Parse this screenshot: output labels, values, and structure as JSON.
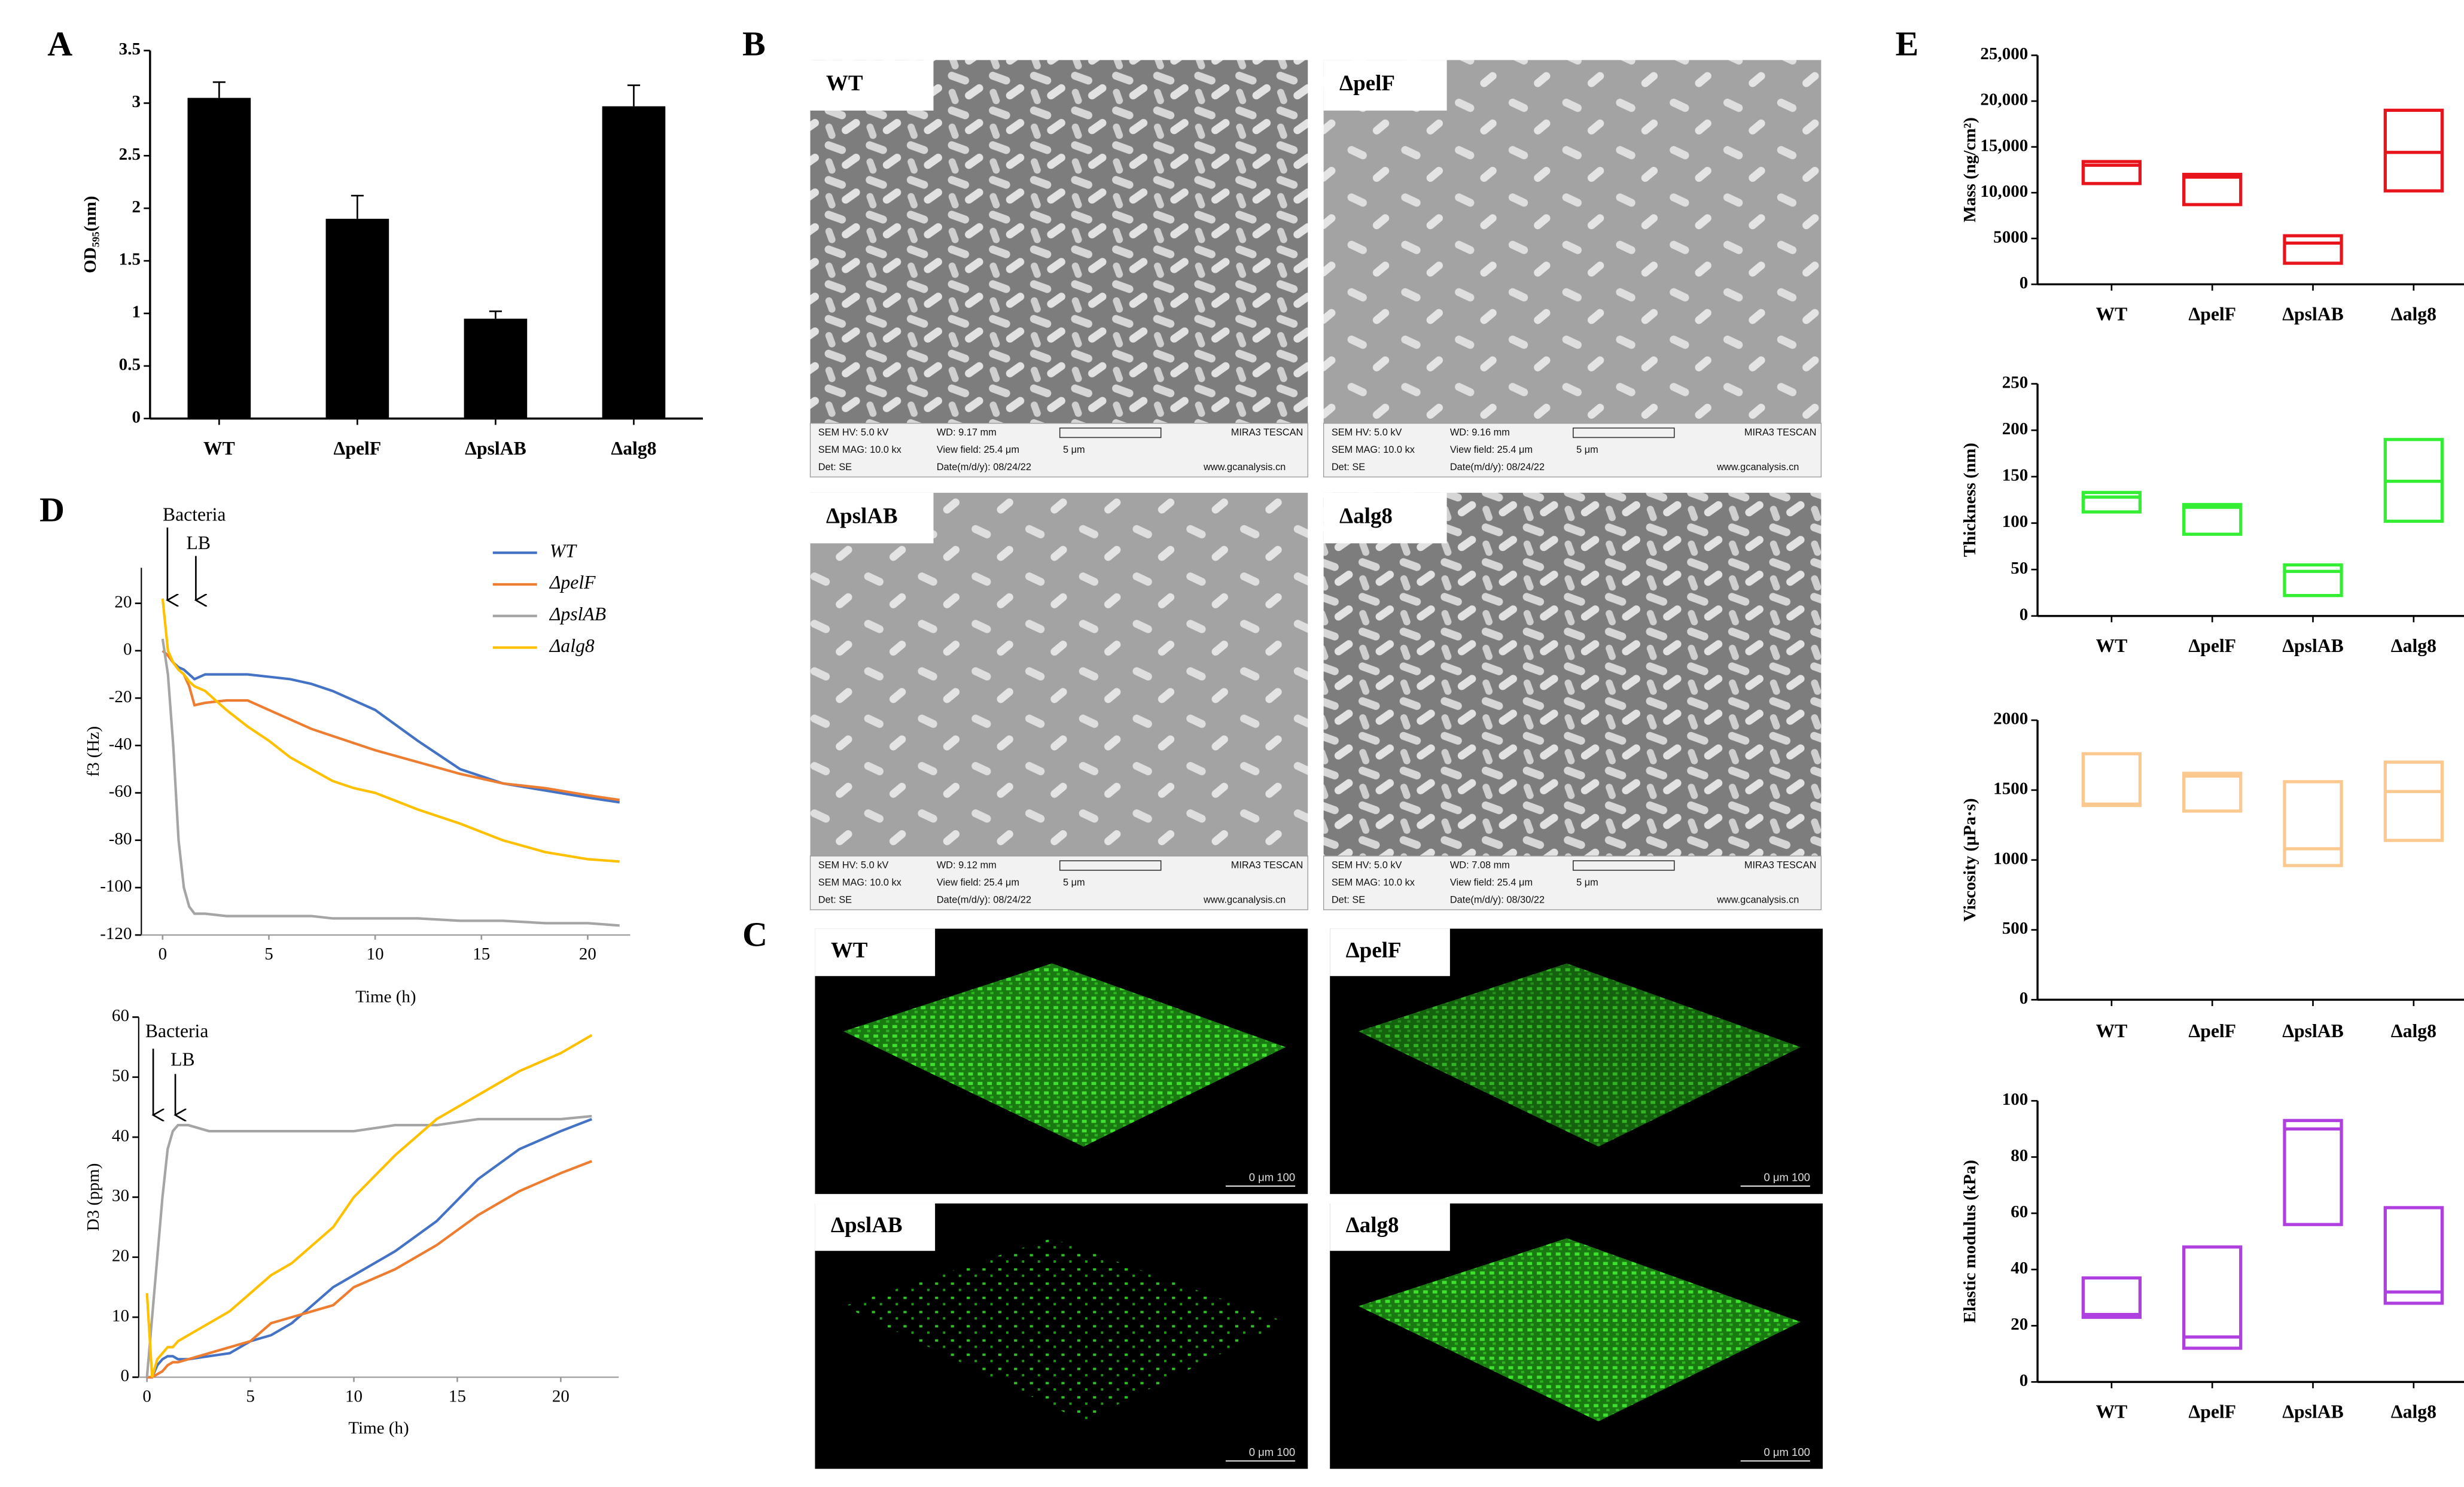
{
  "panel_labels": [
    "A",
    "B",
    "C",
    "D",
    "E"
  ],
  "sem_images": [
    {
      "label": "WT",
      "hv": "SEM HV: 5.0 kV",
      "wd": "WD: 9.17 mm",
      "brand": "MIRA3 TESCAN",
      "mag": "SEM MAG: 10.0 kx",
      "view_field": "View field: 25.4 μm",
      "scale": "5 μm",
      "det": "Det: SE",
      "date": "Date(m/d/y): 08/24/22",
      "website": "www.gcanalysis.cn"
    },
    {
      "label": "ΔpelF",
      "hv": "SEM HV: 5.0 kV",
      "wd": "WD: 9.16 mm",
      "brand": "MIRA3 TESCAN",
      "mag": "SEM MAG: 10.0 kx",
      "view_field": "View field: 25.4 μm",
      "scale": "5 μm",
      "det": "Det: SE",
      "date": "Date(m/d/y): 08/24/22",
      "website": "www.gcanalysis.cn"
    },
    {
      "label": "ΔpslAB",
      "hv": "SEM HV: 5.0 kV",
      "wd": "WD: 9.12 mm",
      "brand": "MIRA3 TESCAN",
      "mag": "SEM MAG: 10.0 kx",
      "view_field": "View field: 25.4 μm",
      "scale": "5 μm",
      "det": "Det: SE",
      "date": "Date(m/d/y): 08/24/22",
      "website": "www.gcanalysis.cn"
    },
    {
      "label": "Δalg8",
      "hv": "SEM HV: 5.0 kV",
      "wd": "WD: 7.08 mm",
      "brand": "MIRA3 TESCAN",
      "mag": "SEM MAG: 10.0 kx",
      "view_field": "View field: 25.4 μm",
      "scale": "5 μm",
      "det": "Det: SE",
      "date": "Date(m/d/y): 08/30/22",
      "website": "www.gcanalysis.cn"
    }
  ],
  "confocal_images": [
    {
      "label": "WT",
      "scale": "0  μm  100"
    },
    {
      "label": "ΔpelF",
      "scale": "0  μm  100"
    },
    {
      "label": "ΔpslAB",
      "scale": "0  μm  100"
    },
    {
      "label": "Δalg8",
      "scale": "0  μm  100"
    }
  ],
  "chart_data": [
    {
      "type": "bar",
      "y_label": "OD₅₉₅(nm)",
      "categories": [
        "WT",
        "ΔpelF",
        "ΔpslAB",
        "Δalg8"
      ],
      "values": [
        3.05,
        1.9,
        0.95,
        2.97
      ],
      "errors": [
        0.15,
        0.22,
        0.07,
        0.2
      ],
      "color": "#000000",
      "ylim": [
        0,
        3.5
      ],
      "yticks": [
        0,
        0.5,
        1,
        1.5,
        2,
        2.5,
        3,
        3.5
      ]
    },
    {
      "type": "line",
      "y_label": "f3 (Hz)",
      "x_label": "Time (h)",
      "annotations": [
        "Bacteria",
        "LB"
      ],
      "legend": "top-right",
      "xlim": [
        -1,
        22
      ],
      "xticks": [
        0,
        5,
        10,
        15,
        20
      ],
      "ylim": [
        -120,
        35
      ],
      "yticks": [
        -120,
        -100,
        -80,
        -60,
        -40,
        -20,
        0,
        20
      ],
      "x": [
        0,
        0.25,
        0.5,
        0.75,
        1,
        1.25,
        1.5,
        2,
        3,
        4,
        5,
        6,
        7,
        8,
        9,
        10,
        12,
        14,
        16,
        18,
        20,
        21.5
      ],
      "series": [
        {
          "name": "WT",
          "color": "#4472c4",
          "values": [
            0,
            -2,
            -5,
            -7,
            -8,
            -10,
            -12,
            -10,
            -10,
            -10,
            -11,
            -12,
            -14,
            -17,
            -21,
            -25,
            -38,
            -50,
            -56,
            -59,
            -62,
            -64
          ]
        },
        {
          "name": "ΔpelF",
          "color": "#ed7d31",
          "values": [
            0,
            -2,
            -5,
            -8,
            -10,
            -15,
            -23,
            -22,
            -21,
            -21,
            -25,
            -29,
            -33,
            -36,
            -39,
            -42,
            -47,
            -52,
            -56,
            -58,
            -61,
            -63
          ]
        },
        {
          "name": "ΔpslAB",
          "color": "#a5a5a5",
          "values": [
            5,
            -10,
            -40,
            -80,
            -100,
            -108,
            -111,
            -111,
            -112,
            -112,
            -112,
            -112,
            -112,
            -113,
            -113,
            -113,
            -113,
            -114,
            -114,
            -115,
            -115,
            -116
          ]
        },
        {
          "name": "Δalg8",
          "color": "#ffc000",
          "values": [
            22,
            0,
            -5,
            -8,
            -10,
            -13,
            -15,
            -17,
            -25,
            -32,
            -38,
            -45,
            -50,
            -55,
            -58,
            -60,
            -67,
            -73,
            -80,
            -85,
            -88,
            -89
          ]
        }
      ]
    },
    {
      "type": "line",
      "y_label": "D3 (ppm)",
      "x_label": "Time (h)",
      "annotations": [
        "Bacteria",
        "LB"
      ],
      "xlim": [
        -0.4,
        22.8
      ],
      "xticks": [
        0,
        5,
        10,
        15,
        20
      ],
      "ylim": [
        0,
        60
      ],
      "yticks": [
        0,
        10,
        20,
        30,
        40,
        50,
        60
      ],
      "x": [
        0,
        0.25,
        0.5,
        0.75,
        1,
        1.25,
        1.5,
        2,
        3,
        4,
        5,
        6,
        7,
        8,
        9,
        10,
        12,
        14,
        16,
        18,
        20,
        21.5
      ],
      "series": [
        {
          "name": "WT",
          "color": "#4472c4",
          "values": [
            0,
            0,
            2,
            3,
            3.5,
            3.5,
            3,
            3,
            3.5,
            4,
            6,
            7,
            9,
            12,
            15,
            17,
            21,
            26,
            33,
            38,
            41,
            43
          ]
        },
        {
          "name": "ΔpelF",
          "color": "#ed7d31",
          "values": [
            0,
            0,
            0.5,
            1,
            2,
            2.5,
            2.5,
            3,
            4,
            5,
            6,
            9,
            10,
            11,
            12,
            15,
            18,
            22,
            27,
            31,
            34,
            36
          ]
        },
        {
          "name": "ΔpslAB",
          "color": "#a5a5a5",
          "values": [
            0,
            10,
            20,
            30,
            38,
            41,
            42,
            42,
            41,
            41,
            41,
            41,
            41,
            41,
            41,
            41,
            42,
            42,
            43,
            43,
            43,
            43.5
          ]
        },
        {
          "name": "Δalg8",
          "color": "#ffc000",
          "values": [
            14,
            0,
            3,
            4,
            5,
            5,
            6,
            7,
            9,
            11,
            14,
            17,
            19,
            22,
            25,
            30,
            37,
            43,
            47,
            51,
            54,
            57
          ]
        }
      ]
    },
    {
      "type": "box",
      "y_label": "Mass (ng/cm²)",
      "categories": [
        "WT",
        "ΔpelF",
        "ΔpslAB",
        "Δalg8"
      ],
      "color": "#e8141c",
      "low": [
        11000,
        8700,
        2300,
        10200
      ],
      "median": [
        13000,
        11700,
        4500,
        14400
      ],
      "high": [
        13400,
        12000,
        5300,
        19000
      ],
      "ylim": [
        0,
        25000
      ],
      "yticks": [
        0,
        5000,
        {
          "value": 10000,
          "label": "10,000"
        },
        {
          "value": 15000,
          "label": "15,000"
        },
        {
          "value": 20000,
          "label": "20,000"
        },
        {
          "value": 25000,
          "label": "25,000"
        }
      ]
    },
    {
      "type": "box",
      "y_label": "Thickness (nm)",
      "categories": [
        "WT",
        "ΔpelF",
        "ΔpslAB",
        "Δalg8"
      ],
      "color": "#33ee33",
      "low": [
        112,
        88,
        22,
        102
      ],
      "median": [
        128,
        117,
        48,
        145
      ],
      "high": [
        133,
        120,
        55,
        190
      ],
      "ylim": [
        0,
        250
      ],
      "yticks": [
        0,
        50,
        100,
        150,
        200,
        250
      ]
    },
    {
      "type": "box",
      "y_label": "Viscosity (μPa·s)",
      "categories": [
        "WT",
        "ΔpelF",
        "ΔpslAB",
        "Δalg8"
      ],
      "color": "#fbc98f",
      "low": [
        1390,
        1350,
        960,
        1140
      ],
      "median": [
        1400,
        1600,
        1080,
        1490
      ],
      "high": [
        1760,
        1620,
        1560,
        1700
      ],
      "ylim": [
        0,
        2000
      ],
      "yticks": [
        0,
        500,
        1000,
        1500,
        2000
      ]
    },
    {
      "type": "box",
      "y_label": "Elastic modulus (kPa)",
      "categories": [
        "WT",
        "ΔpelF",
        "ΔpslAB",
        "Δalg8"
      ],
      "color": "#b03fe0",
      "low": [
        23,
        12,
        56,
        28
      ],
      "median": [
        24,
        16,
        90,
        32
      ],
      "high": [
        37,
        48,
        93,
        62
      ],
      "ylim": [
        0,
        100
      ],
      "yticks": [
        0,
        20,
        40,
        60,
        80,
        100
      ]
    }
  ]
}
